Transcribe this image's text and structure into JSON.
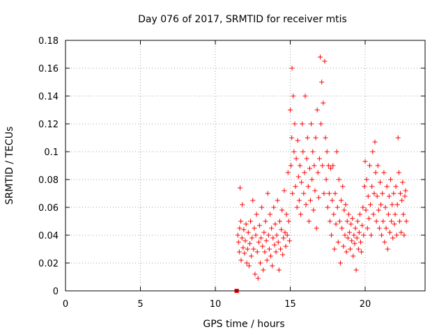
{
  "chart_data": {
    "type": "scatter",
    "title": "Day 076 of 2017, SRMTID for receiver mtis",
    "xlabel": "GPS time / hours",
    "ylabel": "SRMTID / TECUs",
    "xlim": [
      0,
      24
    ],
    "ylim": [
      0,
      0.18
    ],
    "xticks": [
      0,
      5,
      10,
      15,
      20
    ],
    "xtick_labels": [
      "0",
      "5",
      "10",
      "15",
      "20"
    ],
    "yticks": [
      0,
      0.02,
      0.04,
      0.06,
      0.08,
      0.1,
      0.12,
      0.14,
      0.16,
      0.18
    ],
    "ytick_labels": [
      "0",
      "0.02",
      "0.04",
      "0.06",
      "0.08",
      "0.1",
      "0.12",
      "0.14",
      "0.16",
      "0.18"
    ],
    "grid": true,
    "marker": "plus",
    "color": "#ff0000",
    "series": [
      {
        "name": "",
        "points": [
          [
            11.4,
            0.0
          ],
          [
            11.45,
            0.0
          ],
          [
            11.5,
            0.04
          ],
          [
            11.55,
            0.035
          ],
          [
            11.6,
            0.028
          ],
          [
            11.62,
            0.045
          ],
          [
            11.65,
            0.074
          ],
          [
            11.7,
            0.05
          ],
          [
            11.72,
            0.022
          ],
          [
            11.78,
            0.038
          ],
          [
            11.8,
            0.062
          ],
          [
            11.85,
            0.031
          ],
          [
            11.9,
            0.044
          ],
          [
            11.95,
            0.027
          ],
          [
            12.0,
            0.036
          ],
          [
            12.05,
            0.048
          ],
          [
            12.1,
            0.02
          ],
          [
            12.15,
            0.03
          ],
          [
            12.2,
            0.042
          ],
          [
            12.25,
            0.018
          ],
          [
            12.3,
            0.034
          ],
          [
            12.35,
            0.05
          ],
          [
            12.4,
            0.025
          ],
          [
            12.45,
            0.038
          ],
          [
            12.5,
            0.065
          ],
          [
            12.55,
            0.03
          ],
          [
            12.6,
            0.045
          ],
          [
            12.65,
            0.012
          ],
          [
            12.7,
            0.04
          ],
          [
            12.75,
            0.055
          ],
          [
            12.8,
            0.028
          ],
          [
            12.85,
            0.009
          ],
          [
            12.9,
            0.035
          ],
          [
            12.95,
            0.047
          ],
          [
            13.0,
            0.02
          ],
          [
            13.05,
            0.038
          ],
          [
            13.1,
            0.06
          ],
          [
            13.15,
            0.032
          ],
          [
            13.2,
            0.015
          ],
          [
            13.25,
            0.042
          ],
          [
            13.3,
            0.028
          ],
          [
            13.35,
            0.05
          ],
          [
            13.4,
            0.036
          ],
          [
            13.45,
            0.022
          ],
          [
            13.5,
            0.07
          ],
          [
            13.55,
            0.04
          ],
          [
            13.6,
            0.03
          ],
          [
            13.65,
            0.055
          ],
          [
            13.7,
            0.025
          ],
          [
            13.75,
            0.045
          ],
          [
            13.8,
            0.018
          ],
          [
            13.85,
            0.038
          ],
          [
            13.9,
            0.06
          ],
          [
            13.95,
            0.033
          ],
          [
            14.0,
            0.048
          ],
          [
            14.05,
            0.028
          ],
          [
            14.1,
            0.04
          ],
          [
            14.15,
            0.065
          ],
          [
            14.2,
            0.035
          ],
          [
            14.25,
            0.015
          ],
          [
            14.3,
            0.05
          ],
          [
            14.35,
            0.03
          ],
          [
            14.4,
            0.044
          ],
          [
            14.45,
            0.058
          ],
          [
            14.5,
            0.026
          ],
          [
            14.55,
            0.038
          ],
          [
            14.6,
            0.072
          ],
          [
            14.65,
            0.042
          ],
          [
            14.7,
            0.032
          ],
          [
            14.75,
            0.055
          ],
          [
            14.8,
            0.04
          ],
          [
            14.85,
            0.085
          ],
          [
            14.9,
            0.05
          ],
          [
            14.95,
            0.036
          ],
          [
            15.0,
            0.13
          ],
          [
            15.05,
            0.09
          ],
          [
            15.1,
            0.11
          ],
          [
            15.12,
            0.16
          ],
          [
            15.15,
            0.07
          ],
          [
            15.2,
            0.14
          ],
          [
            15.25,
            0.1
          ],
          [
            15.3,
            0.12
          ],
          [
            15.35,
            0.075
          ],
          [
            15.4,
            0.095
          ],
          [
            15.45,
            0.06
          ],
          [
            15.5,
            0.108
          ],
          [
            15.55,
            0.082
          ],
          [
            15.6,
            0.065
          ],
          [
            15.65,
            0.09
          ],
          [
            15.7,
            0.055
          ],
          [
            15.75,
            0.078
          ],
          [
            15.8,
            0.12
          ],
          [
            15.85,
            0.1
          ],
          [
            15.9,
            0.07
          ],
          [
            15.95,
            0.085
          ],
          [
            16.0,
            0.14
          ],
          [
            16.05,
            0.062
          ],
          [
            16.1,
            0.095
          ],
          [
            16.15,
            0.11
          ],
          [
            16.2,
            0.075
          ],
          [
            16.25,
            0.05
          ],
          [
            16.3,
            0.088
          ],
          [
            16.35,
            0.065
          ],
          [
            16.4,
            0.12
          ],
          [
            16.45,
            0.08
          ],
          [
            16.5,
            0.1
          ],
          [
            16.55,
            0.058
          ],
          [
            16.6,
            0.09
          ],
          [
            16.65,
            0.072
          ],
          [
            16.7,
            0.11
          ],
          [
            16.75,
            0.045
          ],
          [
            16.8,
            0.13
          ],
          [
            16.85,
            0.085
          ],
          [
            16.9,
            0.067
          ],
          [
            16.95,
            0.095
          ],
          [
            17.0,
            0.168
          ],
          [
            17.05,
            0.12
          ],
          [
            17.1,
            0.15
          ],
          [
            17.15,
            0.09
          ],
          [
            17.2,
            0.135
          ],
          [
            17.25,
            0.07
          ],
          [
            17.3,
            0.165
          ],
          [
            17.35,
            0.11
          ],
          [
            17.4,
            0.08
          ],
          [
            17.45,
            0.1
          ],
          [
            17.5,
            0.06
          ],
          [
            17.55,
            0.09
          ],
          [
            17.6,
            0.07
          ],
          [
            17.65,
            0.05
          ],
          [
            17.7,
            0.088
          ],
          [
            17.75,
            0.04
          ],
          [
            17.8,
            0.065
          ],
          [
            17.85,
            0.09
          ],
          [
            17.9,
            0.055
          ],
          [
            17.95,
            0.03
          ],
          [
            18.0,
            0.07
          ],
          [
            18.05,
            0.048
          ],
          [
            18.1,
            0.1
          ],
          [
            18.15,
            0.06
          ],
          [
            18.2,
            0.035
          ],
          [
            18.25,
            0.08
          ],
          [
            18.3,
            0.05
          ],
          [
            18.35,
            0.02
          ],
          [
            18.4,
            0.065
          ],
          [
            18.45,
            0.045
          ],
          [
            18.5,
            0.075
          ],
          [
            18.55,
            0.032
          ],
          [
            18.6,
            0.058
          ],
          [
            18.65,
            0.04
          ],
          [
            18.7,
            0.062
          ],
          [
            18.75,
            0.028
          ],
          [
            18.8,
            0.05
          ],
          [
            18.85,
            0.038
          ],
          [
            18.9,
            0.055
          ],
          [
            18.95,
            0.042
          ],
          [
            19.0,
            0.03
          ],
          [
            19.05,
            0.048
          ],
          [
            19.1,
            0.036
          ],
          [
            19.15,
            0.052
          ],
          [
            19.2,
            0.025
          ],
          [
            19.25,
            0.04
          ],
          [
            19.3,
            0.034
          ],
          [
            19.35,
            0.045
          ],
          [
            19.4,
            0.015
          ],
          [
            19.45,
            0.038
          ],
          [
            19.5,
            0.05
          ],
          [
            19.55,
            0.03
          ],
          [
            19.6,
            0.042
          ],
          [
            19.65,
            0.055
          ],
          [
            19.7,
            0.035
          ],
          [
            19.75,
            0.028
          ],
          [
            19.8,
            0.047
          ],
          [
            19.85,
            0.06
          ],
          [
            19.9,
            0.04
          ],
          [
            19.95,
            0.075
          ],
          [
            20.0,
            0.093
          ],
          [
            20.05,
            0.058
          ],
          [
            20.1,
            0.08
          ],
          [
            20.15,
            0.045
          ],
          [
            20.2,
            0.068
          ],
          [
            20.25,
            0.052
          ],
          [
            20.3,
            0.09
          ],
          [
            20.35,
            0.062
          ],
          [
            20.4,
            0.04
          ],
          [
            20.45,
            0.075
          ],
          [
            20.5,
            0.1
          ],
          [
            20.55,
            0.055
          ],
          [
            20.6,
            0.07
          ],
          [
            20.65,
            0.107
          ],
          [
            20.7,
            0.085
          ],
          [
            20.75,
            0.05
          ],
          [
            20.8,
            0.068
          ],
          [
            20.85,
            0.09
          ],
          [
            20.9,
            0.058
          ],
          [
            20.95,
            0.045
          ],
          [
            21.0,
            0.078
          ],
          [
            21.05,
            0.062
          ],
          [
            21.1,
            0.04
          ],
          [
            21.15,
            0.07
          ],
          [
            21.2,
            0.05
          ],
          [
            21.25,
            0.085
          ],
          [
            21.3,
            0.035
          ],
          [
            21.35,
            0.06
          ],
          [
            21.4,
            0.045
          ],
          [
            21.45,
            0.075
          ],
          [
            21.5,
            0.03
          ],
          [
            21.55,
            0.055
          ],
          [
            21.6,
            0.068
          ],
          [
            21.65,
            0.042
          ],
          [
            21.7,
            0.08
          ],
          [
            21.75,
            0.05
          ],
          [
            21.8,
            0.062
          ],
          [
            21.85,
            0.038
          ],
          [
            21.9,
            0.07
          ],
          [
            21.95,
            0.048
          ],
          [
            22.0,
            0.055
          ],
          [
            22.05,
            0.075
          ],
          [
            22.1,
            0.04
          ],
          [
            22.15,
            0.062
          ],
          [
            22.2,
            0.11
          ],
          [
            22.25,
            0.085
          ],
          [
            22.3,
            0.05
          ],
          [
            22.35,
            0.07
          ],
          [
            22.4,
            0.042
          ],
          [
            22.45,
            0.065
          ],
          [
            22.5,
            0.078
          ],
          [
            22.55,
            0.055
          ],
          [
            22.6,
            0.04
          ],
          [
            22.65,
            0.068
          ],
          [
            22.7,
            0.072
          ],
          [
            22.75,
            0.05
          ]
        ]
      }
    ]
  }
}
